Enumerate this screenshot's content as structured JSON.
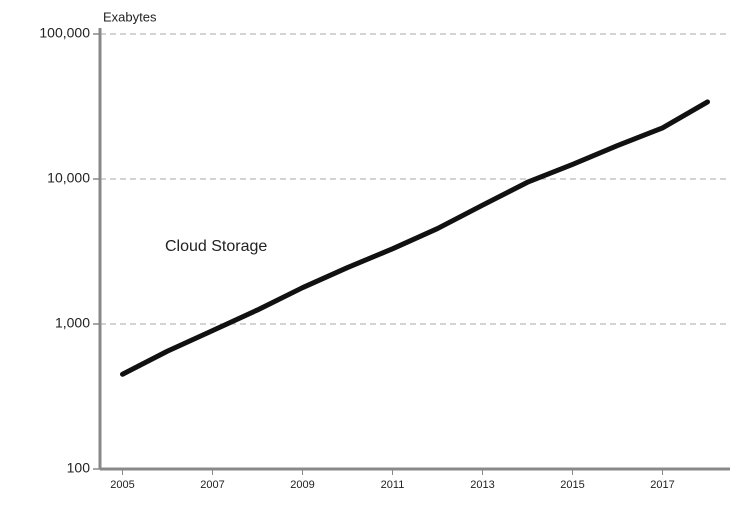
{
  "chart_data": {
    "type": "line",
    "y_axis_label": "Exabytes",
    "annotation": "Cloud Storage",
    "x": [
      2005,
      2006,
      2007,
      2008,
      2009,
      2010,
      2011,
      2012,
      2013,
      2014,
      2015,
      2016,
      2017,
      2018
    ],
    "series": [
      {
        "name": "Cloud Storage",
        "color": "#111111",
        "values": [
          450,
          650,
          900,
          1250,
          1780,
          2450,
          3300,
          4550,
          6600,
          9500,
          12600,
          17000,
          22500,
          34000
        ]
      }
    ],
    "xlim": [
      2004.5,
      2018.5
    ],
    "xticks": [
      2005,
      2007,
      2009,
      2011,
      2013,
      2015,
      2017
    ],
    "ylim": [
      100,
      100000
    ],
    "log_y": true,
    "yticks": [
      100,
      {
        "value": 1000,
        "label": "1,000"
      },
      {
        "value": 10000,
        "label": "10,000"
      },
      {
        "value": 100000,
        "label": "100,000"
      }
    ],
    "grid": true
  }
}
